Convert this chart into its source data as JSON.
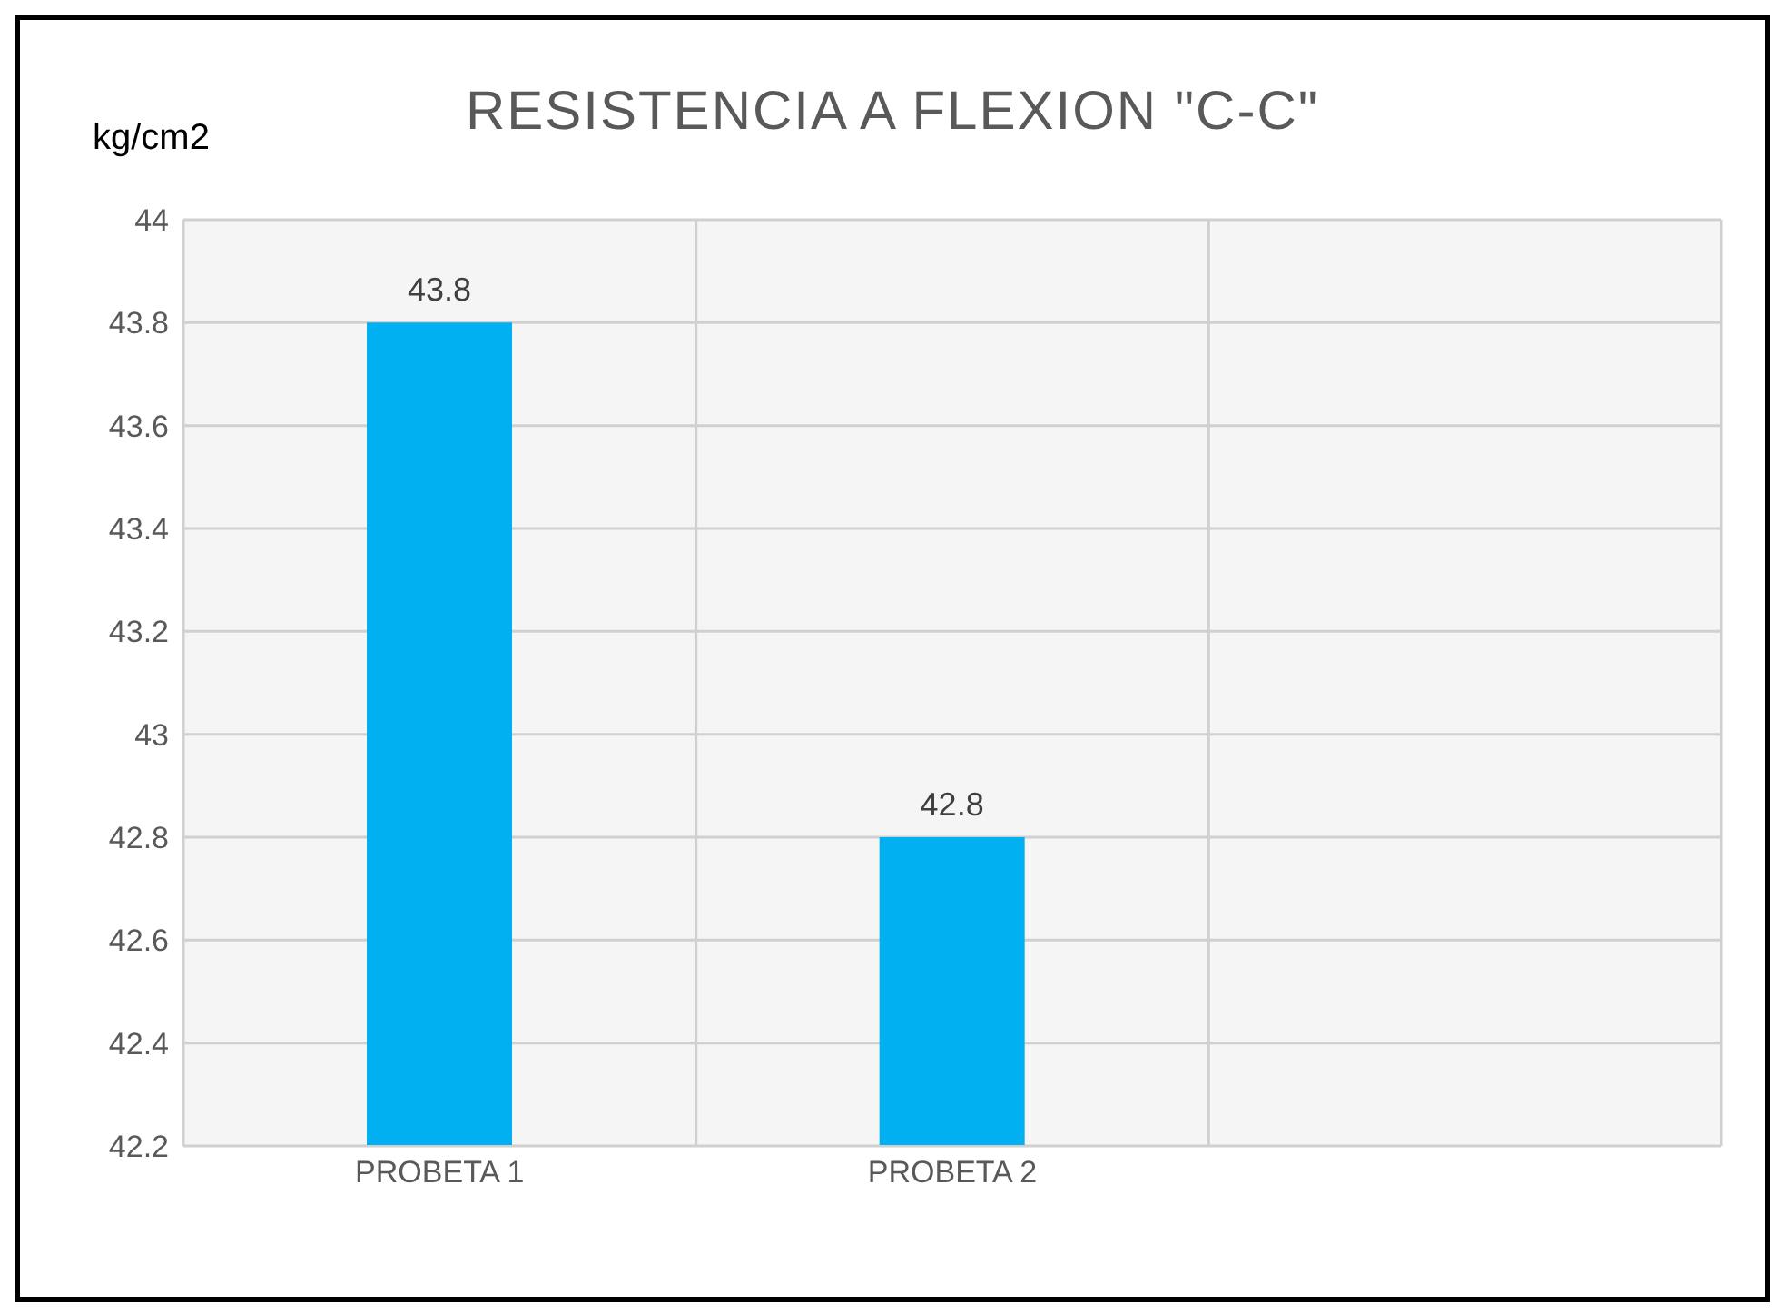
{
  "chart_data": {
    "type": "bar",
    "title": "RESISTENCIA  A  FLEXION  \"C-C\"",
    "ylabel": "kg/cm2",
    "categories": [
      "PROBETA 1",
      "PROBETA 2",
      null
    ],
    "values": [
      43.8,
      42.8,
      null
    ],
    "color": "#00b0f0",
    "ylim": [
      42.2,
      44
    ],
    "yticks": [
      42.2,
      42.4,
      42.6,
      42.8,
      43,
      43.2,
      43.4,
      43.6,
      43.8,
      44
    ],
    "grid": true,
    "data_labels": true
  }
}
